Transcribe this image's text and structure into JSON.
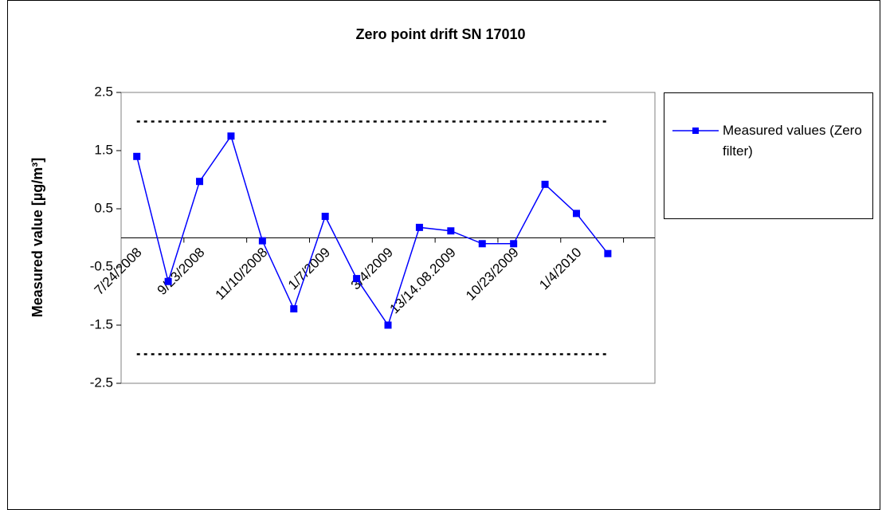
{
  "chart_data": {
    "type": "line",
    "title": "Zero point drift SN 17010",
    "y_label": "Measured value [µg/m³]",
    "categories": [
      "7/24/2008",
      null,
      "9/23/2008",
      null,
      "11/10/2008",
      null,
      "1/7/2009",
      null,
      "3/4/2009",
      null,
      "13/14.08.2009",
      null,
      "10/23/2009",
      null,
      "1/4/2010",
      null,
      null
    ],
    "series": [
      {
        "name": "Measured values (Zero filter)",
        "color": "#0000ff",
        "values": [
          1.4,
          -0.75,
          0.97,
          1.75,
          -0.05,
          -1.22,
          0.37,
          -0.7,
          -1.5,
          0.18,
          0.12,
          -0.1,
          -0.1,
          0.92,
          0.42,
          -0.27,
          null
        ]
      }
    ],
    "ylim": [
      -2.5,
      2.5
    ],
    "yticks": [
      -2.5,
      -1.5,
      -0.5,
      0.5,
      1.5,
      2.5
    ],
    "reference_lines": [
      2,
      -2
    ],
    "zero_line": true,
    "grid": false
  }
}
